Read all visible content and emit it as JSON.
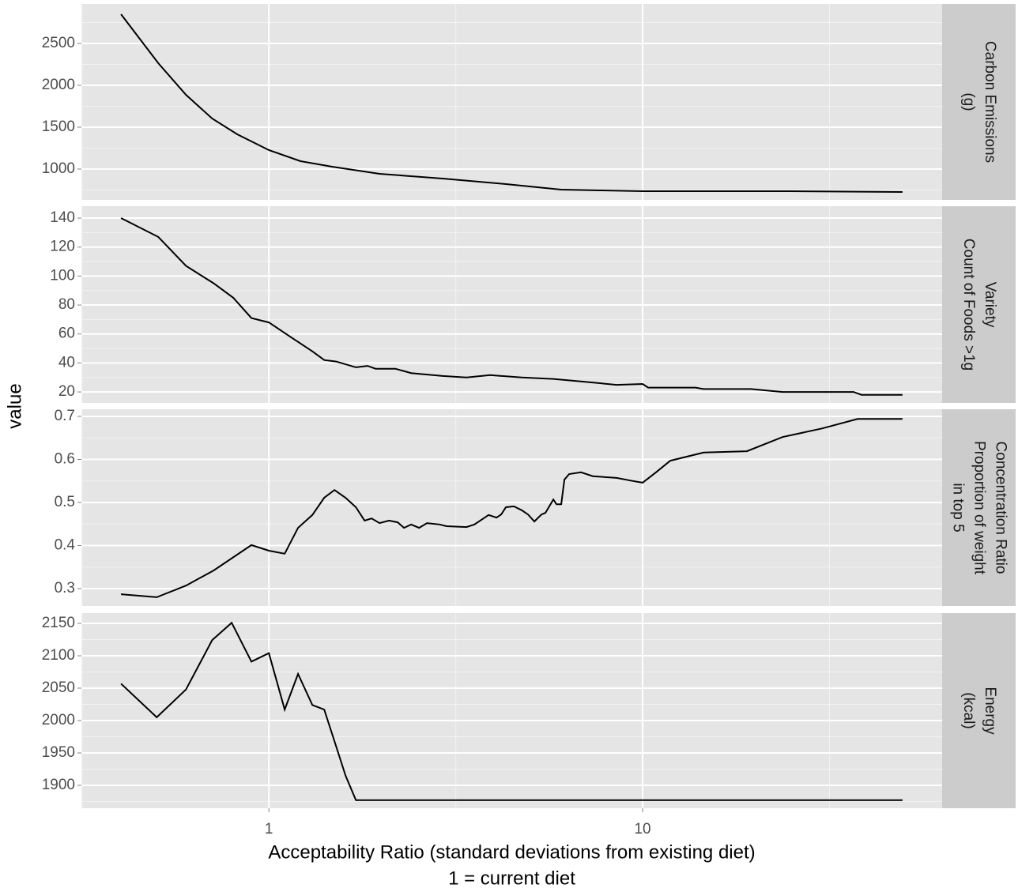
{
  "chart_data": {
    "type": "line",
    "xlabel": [
      "Acceptability Ratio (standard deviations from existing diet)",
      "1 = current diet"
    ],
    "ylabel": "value",
    "xscale": "log",
    "xlim": [
      0.315,
      63.3
    ],
    "xticks": [
      1,
      10
    ],
    "grid": true,
    "color": "#000000",
    "facets": [
      {
        "strip": [
          "Carbon Emissions",
          "(g)"
        ],
        "ylim": [
          632,
          2972
        ],
        "yticks": [
          1000,
          1500,
          2000,
          2500
        ],
        "x": [
          0.402,
          0.506,
          0.6,
          0.705,
          0.823,
          1,
          1.215,
          1.476,
          1.977,
          2.918,
          4.31,
          6.05,
          7.73,
          10,
          13.86,
          24.8,
          49.6
        ],
        "values": [
          2849,
          2264,
          1887,
          1604,
          1415,
          1226,
          1094,
          1028,
          943,
          887,
          821,
          755,
          745,
          736,
          736,
          736,
          726
        ]
      },
      {
        "strip": [
          "Variety",
          "Count of Foods >1g"
        ],
        "ylim": [
          12.4,
          148.2
        ],
        "yticks": [
          20,
          40,
          60,
          80,
          100,
          120,
          140
        ],
        "x": [
          0.402,
          0.506,
          0.6,
          0.711,
          0.803,
          0.898,
          1,
          1.157,
          1.307,
          1.406,
          1.513,
          1.709,
          1.837,
          1.93,
          2.179,
          2.402,
          2.918,
          3.378,
          3.91,
          4.75,
          5.769,
          7.01,
          8.52,
          10,
          10.35,
          13.86,
          14.55,
          19.49,
          23.67,
          36.69,
          38.5,
          49.6
        ],
        "values": [
          140,
          127,
          107,
          95,
          85,
          71,
          68,
          57,
          48,
          42,
          41,
          37,
          38,
          36,
          36,
          33,
          31,
          30,
          31.6,
          30,
          29,
          27,
          24.9,
          25.5,
          23,
          23,
          22,
          22,
          20,
          20,
          18,
          18
        ]
      },
      {
        "strip": [
          "Concentration Ratio",
          "Proportion of weight",
          "in top 5"
        ],
        "ylim": [
          0.2596,
          0.7165
        ],
        "yticks": [
          0.3,
          0.4,
          0.5,
          0.6,
          0.7
        ],
        "x": [
          0.402,
          0.501,
          0.6,
          0.711,
          0.898,
          1,
          1.102,
          1.197,
          1.307,
          1.406,
          1.498,
          1.604,
          1.709,
          1.803,
          1.883,
          1.977,
          2.096,
          2.211,
          2.299,
          2.402,
          2.522,
          2.648,
          2.861,
          2.989,
          3.378,
          3.546,
          3.723,
          3.871,
          4.064,
          4.184,
          4.308,
          4.523,
          4.749,
          4.937,
          5.133,
          5.363,
          5.495,
          5.769,
          5.883,
          6.056,
          6.175,
          6.36,
          6.84,
          7.36,
          8.52,
          9.39,
          10,
          10.86,
          11.86,
          14.55,
          19.01,
          23.67,
          30.2,
          37.6,
          49.6
        ],
        "values": [
          0.287,
          0.28,
          0.307,
          0.342,
          0.401,
          0.388,
          0.381,
          0.441,
          0.471,
          0.511,
          0.529,
          0.511,
          0.489,
          0.458,
          0.463,
          0.452,
          0.458,
          0.454,
          0.441,
          0.449,
          0.441,
          0.452,
          0.449,
          0.445,
          0.443,
          0.449,
          0.461,
          0.471,
          0.465,
          0.472,
          0.489,
          0.491,
          0.482,
          0.472,
          0.456,
          0.472,
          0.476,
          0.507,
          0.496,
          0.496,
          0.553,
          0.566,
          0.57,
          0.561,
          0.557,
          0.55,
          0.546,
          0.57,
          0.597,
          0.616,
          0.619,
          0.652,
          0.672,
          0.694,
          0.694
        ]
      },
      {
        "strip": [
          "Energy",
          "(kcal)"
        ],
        "ylim": [
          1864.6,
          2165.9
        ],
        "yticks": [
          1900,
          1950,
          2000,
          2050,
          2100,
          2150
        ],
        "x": [
          0.402,
          0.501,
          0.6,
          0.705,
          0.795,
          0.898,
          1,
          1.102,
          1.197,
          1.307,
          1.406,
          1.498,
          1.604,
          1.709,
          49.6
        ],
        "values": [
          2057,
          2005,
          2048,
          2124,
          2151,
          2091,
          2104,
          2017,
          2072,
          2024,
          2017,
          1968,
          1915,
          1877,
          1877
        ]
      }
    ]
  }
}
